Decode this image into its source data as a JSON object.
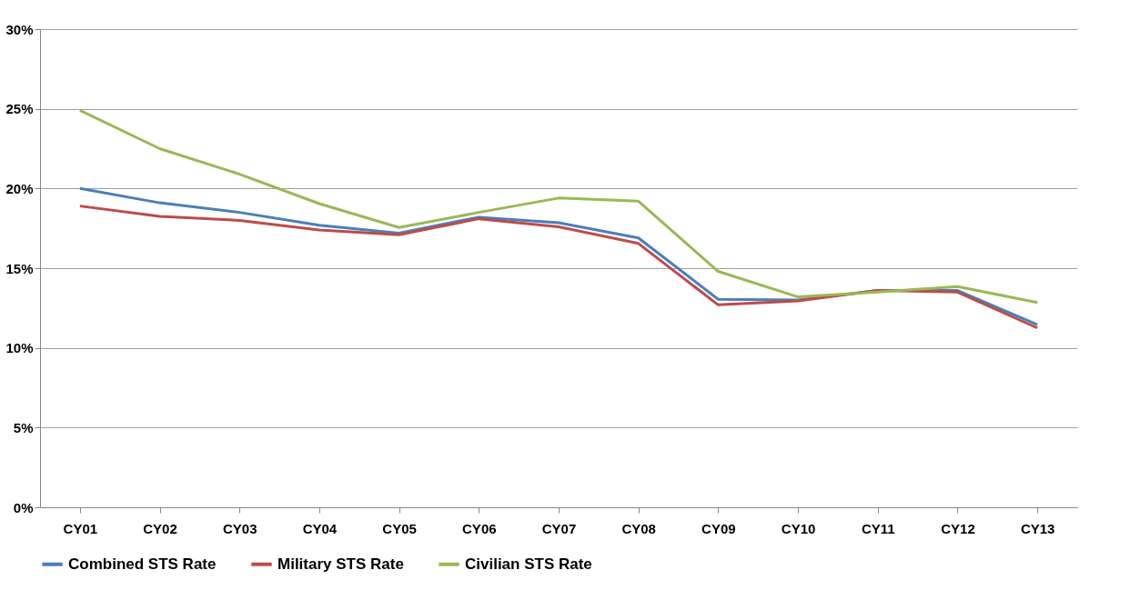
{
  "chart_data": {
    "type": "line",
    "categories": [
      "CY01",
      "CY02",
      "CY03",
      "CY04",
      "CY05",
      "CY06",
      "CY07",
      "CY08",
      "CY09",
      "CY10",
      "CY11",
      "CY12",
      "CY13"
    ],
    "series": [
      {
        "name": "Combined STS Rate",
        "color": "#4a7ebb",
        "values": [
          20.0,
          19.1,
          18.5,
          17.7,
          17.2,
          18.2,
          17.85,
          16.9,
          13.05,
          13.0,
          13.6,
          13.6,
          11.45
        ]
      },
      {
        "name": "Military STS Rate",
        "color": "#be4b48",
        "values": [
          18.9,
          18.25,
          18.0,
          17.4,
          17.1,
          18.1,
          17.6,
          16.55,
          12.7,
          12.95,
          13.6,
          13.5,
          11.25
        ]
      },
      {
        "name": "Civilian STS Rate",
        "color": "#98b954",
        "values": [
          24.9,
          22.5,
          20.9,
          19.05,
          17.55,
          18.5,
          19.4,
          19.2,
          14.8,
          13.2,
          13.5,
          13.85,
          12.85
        ]
      }
    ],
    "ylim": [
      0,
      30
    ],
    "yticks": [
      {
        "value": 0,
        "label": "0%"
      },
      {
        "value": 5,
        "label": "5%"
      },
      {
        "value": 10,
        "label": "10%"
      },
      {
        "value": 15,
        "label": "15%"
      },
      {
        "value": 20,
        "label": "20%"
      },
      {
        "value": 25,
        "label": "25%"
      },
      {
        "value": 30,
        "label": "30%"
      }
    ],
    "grid": "y",
    "legend": "bottom",
    "marker": "none",
    "line_style": "solid"
  }
}
